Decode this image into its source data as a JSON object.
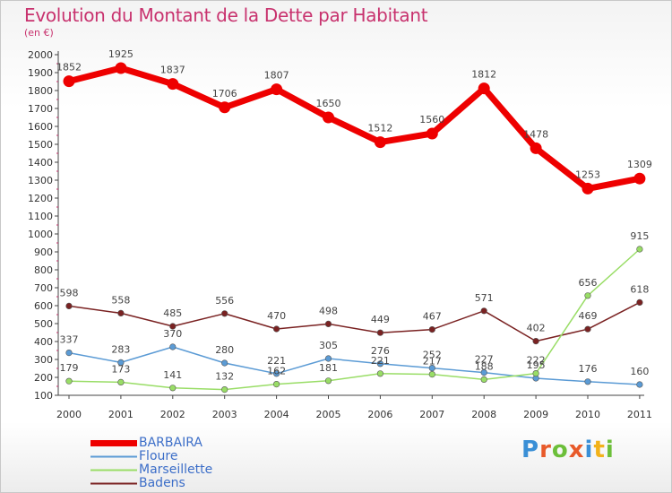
{
  "title": "Evolution du Montant de la Dette par Habitant",
  "subtitle": "(en €)",
  "logo": {
    "text": "Proxiti",
    "letter_colors": [
      "#3a8fd6",
      "#e85a2a",
      "#6cbf3a",
      "#e85a2a",
      "#3a8fd6",
      "#f2b21a",
      "#6cbf3a"
    ]
  },
  "chart_data": {
    "type": "line",
    "title": "Evolution du Montant de la Dette par Habitant",
    "subtitle": "(en €)",
    "xlabel": "",
    "ylabel": "",
    "x": [
      "2000",
      "2001",
      "2002",
      "2003",
      "2004",
      "2005",
      "2006",
      "2007",
      "2008",
      "2009",
      "2010",
      "2011"
    ],
    "ylim": [
      100,
      2000
    ],
    "yticks": [
      100,
      200,
      300,
      400,
      500,
      600,
      700,
      800,
      900,
      1000,
      1100,
      1200,
      1300,
      1400,
      1500,
      1600,
      1700,
      1800,
      1900,
      2000
    ],
    "grid": false,
    "legend_position": "bottom-left",
    "series": [
      {
        "name": "BARBAIRA",
        "color": "#ee0000",
        "values": [
          1852,
          1925,
          1837,
          1706,
          1807,
          1650,
          1512,
          1560,
          1812,
          1478,
          1253,
          1309
        ],
        "labels": [
          "1852",
          "1925",
          "1837",
          "1706",
          "1807",
          "1650",
          "1512",
          "1560",
          "1812",
          "1478",
          "1253",
          "1309"
        ]
      },
      {
        "name": "Floure",
        "color": "#5b9bd5",
        "values": [
          337,
          283,
          370,
          280,
          221,
          305,
          276,
          252,
          227,
          195,
          176,
          160
        ],
        "labels": [
          "337",
          "283",
          "370",
          "280",
          "221",
          "305",
          "276",
          "252",
          "227",
          "195",
          "176",
          "160"
        ]
      },
      {
        "name": "Marseillette",
        "color": "#99dd66",
        "values": [
          179,
          173,
          141,
          132,
          162,
          181,
          221,
          217,
          188,
          222,
          656,
          915
        ],
        "labels": [
          "179",
          "173",
          "141",
          "132",
          "162",
          "181",
          "221",
          "217",
          "188",
          "222",
          "656",
          "915"
        ]
      },
      {
        "name": "Badens",
        "color": "#7a2222",
        "values": [
          598,
          558,
          485,
          556,
          470,
          498,
          449,
          467,
          571,
          402,
          469,
          618
        ],
        "labels": [
          "598",
          "558",
          "485",
          "556",
          "470",
          "498",
          "449",
          "467",
          "571",
          "402",
          "469",
          "618"
        ]
      }
    ]
  }
}
